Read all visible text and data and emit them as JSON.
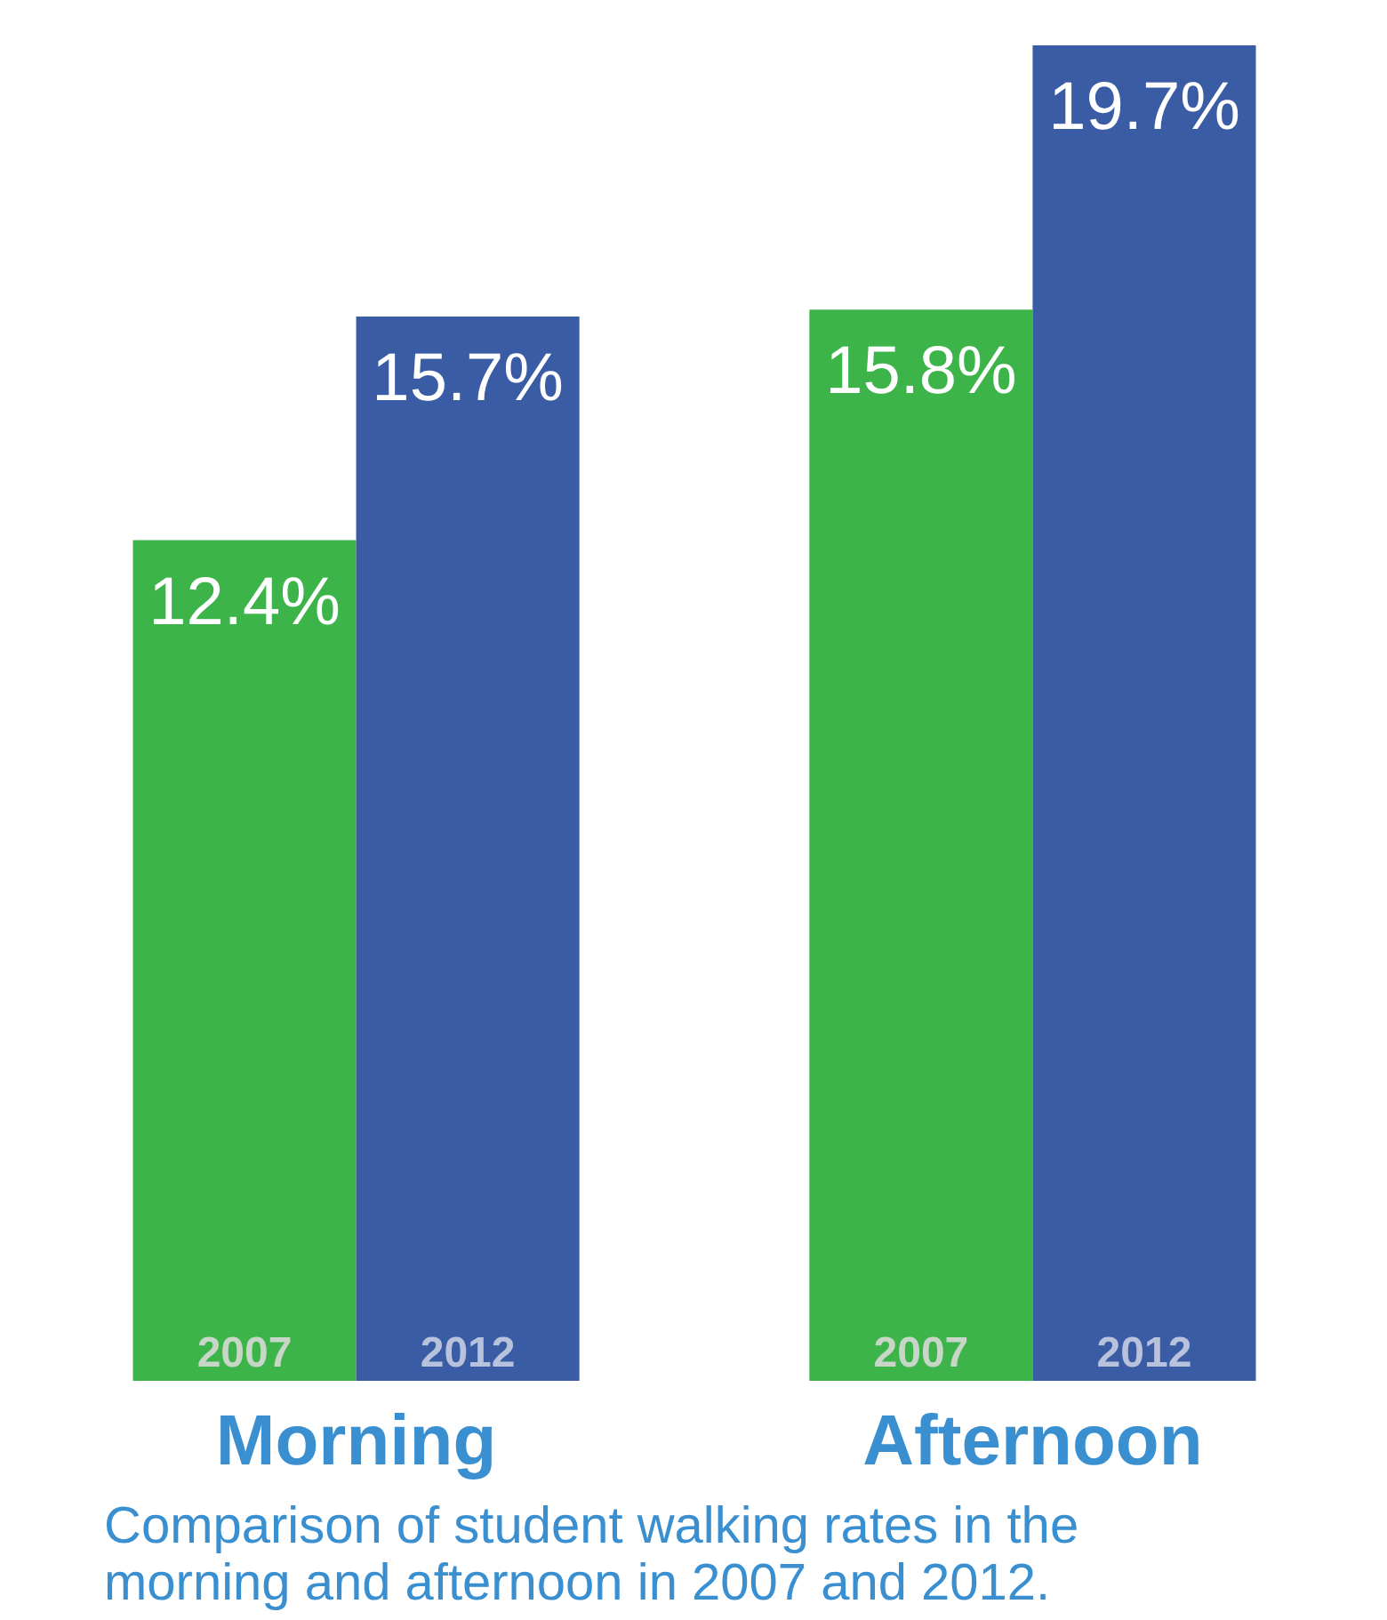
{
  "chart_data": {
    "type": "bar",
    "categories": [
      "Morning",
      "Afternoon"
    ],
    "series": [
      {
        "name": "2007",
        "color": "#3cb44a",
        "values": [
          12.4,
          15.8
        ],
        "value_labels": [
          "12.4%",
          "15.8%"
        ]
      },
      {
        "name": "2012",
        "color": "#3a5ca4",
        "values": [
          15.7,
          19.7
        ],
        "value_labels": [
          "15.7%",
          "19.7%"
        ]
      }
    ],
    "annotations": [
      "Comparison of student walking rates in the\nmorning and afternoon in 2007 and 2012."
    ]
  }
}
